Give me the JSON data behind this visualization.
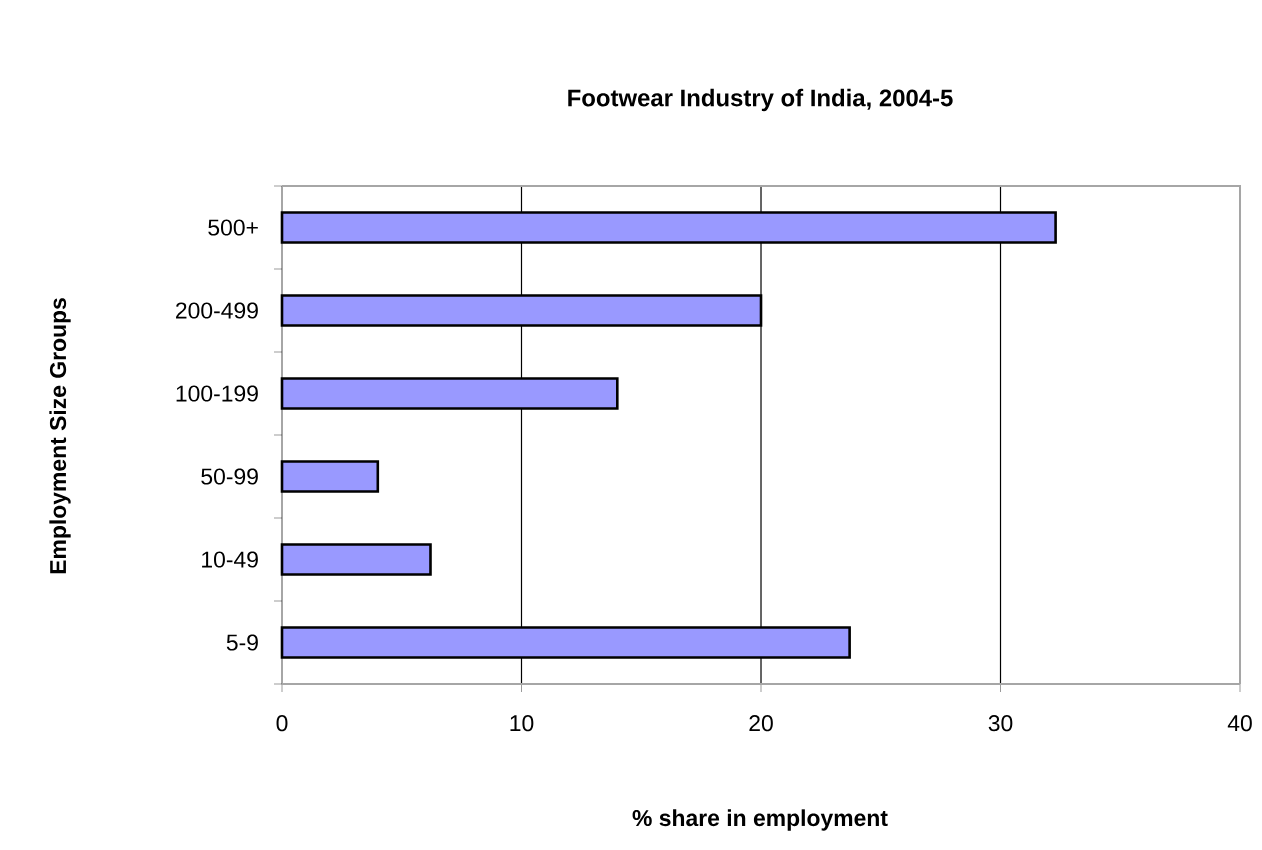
{
  "chart_data": {
    "type": "bar",
    "orientation": "horizontal",
    "title": "Footwear Industry of India, 2004-5",
    "xlabel": "% share in employment",
    "ylabel": "Employment Size Groups",
    "categories": [
      "500+",
      "200-499",
      "100-199",
      "50-99",
      "10-49",
      "5-9"
    ],
    "values": [
      32.3,
      20.0,
      14.0,
      4.0,
      6.2,
      23.7
    ],
    "color": "#9999ff",
    "xlim": [
      0,
      40
    ],
    "xticks": [
      0,
      10,
      20,
      30,
      40
    ],
    "grid": "x"
  }
}
